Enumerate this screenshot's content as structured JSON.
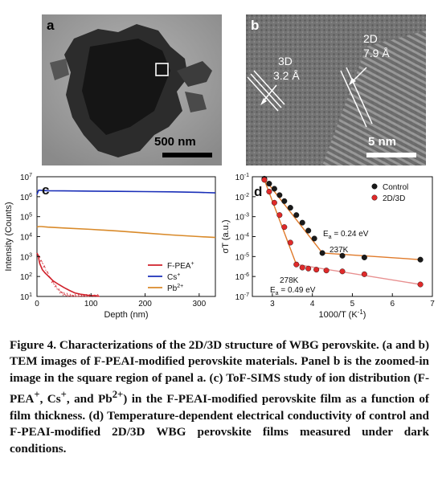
{
  "panels": {
    "a": {
      "label": "a",
      "scale_bar": "500 nm"
    },
    "b": {
      "label": "b",
      "phase_3d": "3D",
      "spacing_3d": "3.2 Å",
      "phase_2d": "2D",
      "spacing_2d": "7.9 Å",
      "scale_bar": "5 nm"
    },
    "c": {
      "label": "c"
    },
    "d": {
      "label": "d"
    }
  },
  "chart_data": [
    {
      "panel": "c",
      "type": "line",
      "xlabel": "Depth (nm)",
      "ylabel": "Intensity (Counts)",
      "xlim": [
        0,
        330
      ],
      "ylim_log10": [
        1,
        7
      ],
      "xticks": [
        "0",
        "100",
        "200",
        "300"
      ],
      "yticks": [
        "10^1",
        "10^2",
        "10^3",
        "10^4",
        "10^5",
        "10^6",
        "10^7"
      ],
      "legend_position": "bottom-right",
      "series": [
        {
          "name": "F-PEA",
          "sup": "+",
          "color": "#d0202a",
          "x": [
            0,
            2,
            5,
            10,
            15,
            20,
            30,
            40,
            50,
            60,
            70,
            80,
            90,
            100,
            110,
            115
          ],
          "y": [
            1500,
            1200,
            450,
            220,
            150,
            110,
            60,
            40,
            28,
            20,
            15,
            13,
            12,
            11,
            11,
            10
          ]
        },
        {
          "name": "Cs",
          "sup": "+",
          "color": "#1a2fb8",
          "x": [
            0,
            3,
            6,
            10,
            20,
            50,
            100,
            150,
            200,
            250,
            300,
            330
          ],
          "y": [
            1300000,
            2100000,
            2100000,
            2050000,
            2000000,
            1950000,
            1900000,
            1850000,
            1800000,
            1750000,
            1650000,
            1550000
          ]
        },
        {
          "name": "Pb",
          "sup": "2+",
          "color": "#d98a2a",
          "x": [
            0,
            3,
            8,
            20,
            50,
            100,
            150,
            200,
            250,
            300,
            330
          ],
          "y": [
            30000,
            32000,
            32000,
            30000,
            27000,
            23000,
            19000,
            15000,
            12000,
            10000,
            9000
          ]
        }
      ]
    },
    {
      "panel": "d",
      "type": "scatter",
      "xlabel": "1000/T (K",
      "xlabel_sup": "-1",
      "xlabel_tail": ")",
      "ylabel": "σT (a.u.)",
      "xlim": [
        2.5,
        7
      ],
      "ylim_log10": [
        -7,
        -1
      ],
      "xticks": [
        "3",
        "4",
        "5",
        "6",
        "7"
      ],
      "yticks": [
        "10^-1",
        "10^-2",
        "10^-3",
        "10^-4",
        "10^-5",
        "10^-6",
        "10^-7"
      ],
      "legend_position": "top-right",
      "series": [
        {
          "name": "Control",
          "color": "#1a1a1a",
          "x": [
            2.8,
            2.92,
            3.05,
            3.18,
            3.3,
            3.45,
            3.6,
            3.75,
            3.9,
            4.05,
            4.25,
            4.75,
            5.3,
            6.7
          ],
          "y": [
            0.08,
            0.045,
            0.025,
            0.012,
            0.006,
            0.0028,
            0.0012,
            0.0005,
            0.0002,
            8e-05,
            1.5e-05,
            1.1e-05,
            9e-06,
            7e-06
          ]
        },
        {
          "name": "2D/3D",
          "color": "#e02a2a",
          "x": [
            2.8,
            2.92,
            3.05,
            3.18,
            3.3,
            3.45,
            3.6,
            3.75,
            3.9,
            4.1,
            4.35,
            4.75,
            5.3,
            6.7
          ],
          "y": [
            0.07,
            0.018,
            0.005,
            0.0012,
            0.0003,
            5e-05,
            4e-06,
            2.8e-06,
            2.5e-06,
            2.2e-06,
            2e-06,
            1.8e-06,
            1.3e-06,
            4e-07
          ]
        }
      ],
      "annotations": {
        "ea_control": "E",
        "ea_control_sub": "a",
        "ea_control_val": "= 0.24 eV",
        "t_control": "237K",
        "t_2d3d": "278K",
        "ea_2d3d": "E",
        "ea_2d3d_sub": "a",
        "ea_2d3d_val": "= 0.49 eV"
      }
    }
  ],
  "caption": {
    "head": "Figure 4.",
    "text": "Characterizations of the 2D/3D structure of WBG perovskite. (a and b) TEM images of F-PEAI-modified perovskite materials. Panel b is the zoomed-in image in the square region of panel a. (c) ToF-SIMS study of ion distribution (F-PEA",
    "sup1": "+",
    "t2": ", Cs",
    "sup2": "+",
    "t3": ", and Pb",
    "sup3": "2+",
    "t4": ") in the F-PEAI-modified perovskite film as a function of film thickness. (d) Temperature-dependent electrical conductivity of control and F-PEAI-modified 2D/3D WBG perovskite films measured under dark conditions."
  }
}
